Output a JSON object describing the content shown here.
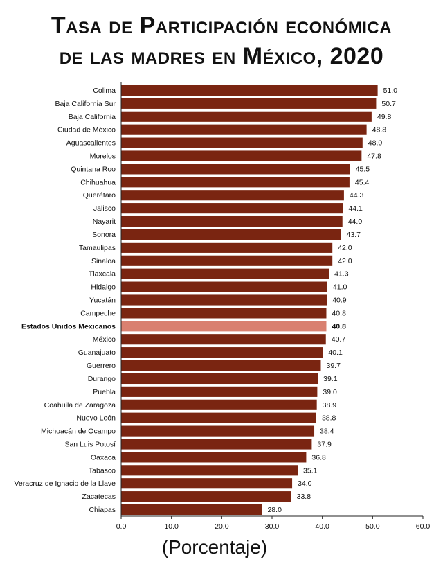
{
  "title_line_1": "Tasa de Participación económica",
  "title_line_2": "de las madres en México, 2020",
  "x_axis_label": "(Porcentaje)",
  "colors": {
    "bar": "#7a2511",
    "highlight_bar": "#d98070",
    "axis": "#222222",
    "text": "#111111"
  },
  "chart_data": {
    "type": "bar",
    "orientation": "horizontal",
    "title": "Tasa de Participación económica de las madres en México, 2020",
    "xlabel": "(Porcentaje)",
    "ylabel": "",
    "xlim": [
      0,
      60
    ],
    "xticks": [
      "0.0",
      "10.0",
      "20.0",
      "30.0",
      "40.0",
      "50.0",
      "60.0"
    ],
    "grid": false,
    "highlight": "Estados Unidos Mexicanos",
    "categories": [
      "Colima",
      "Baja California Sur",
      "Baja California",
      "Ciudad de México",
      "Aguascalientes",
      "Morelos",
      "Quintana Roo",
      "Chihuahua",
      "Querétaro",
      "Jalisco",
      "Nayarit",
      "Sonora",
      "Tamaulipas",
      "Sinaloa",
      "Tlaxcala",
      "Hidalgo",
      "Yucatán",
      "Campeche",
      "Estados Unidos Mexicanos",
      "México",
      "Guanajuato",
      "Guerrero",
      "Durango",
      "Puebla",
      "Coahuila de Zaragoza",
      "Nuevo León",
      "Michoacán de Ocampo",
      "San Luis Potosí",
      "Oaxaca",
      "Tabasco",
      "Veracruz de Ignacio de la Llave",
      "Zacatecas",
      "Chiapas"
    ],
    "values": [
      51.0,
      50.7,
      49.8,
      48.8,
      48.0,
      47.8,
      45.5,
      45.4,
      44.3,
      44.1,
      44.0,
      43.7,
      42.0,
      42.0,
      41.3,
      41.0,
      40.9,
      40.8,
      40.8,
      40.7,
      40.1,
      39.7,
      39.1,
      39.0,
      38.9,
      38.8,
      38.4,
      37.9,
      36.8,
      35.1,
      34.0,
      33.8,
      28.0
    ],
    "value_labels": [
      "51.0",
      "50.7",
      "49.8",
      "48.8",
      "48.0",
      "47.8",
      "45.5",
      "45.4",
      "44.3",
      "44.1",
      "44.0",
      "43.7",
      "42.0",
      "42.0",
      "41.3",
      "41.0",
      "40.9",
      "40.8",
      "40.8",
      "40.7",
      "40.1",
      "39.7",
      "39.1",
      "39.0",
      "38.9",
      "38.8",
      "38.4",
      "37.9",
      "36.8",
      "35.1",
      "34.0",
      "33.8",
      "28.0"
    ]
  }
}
